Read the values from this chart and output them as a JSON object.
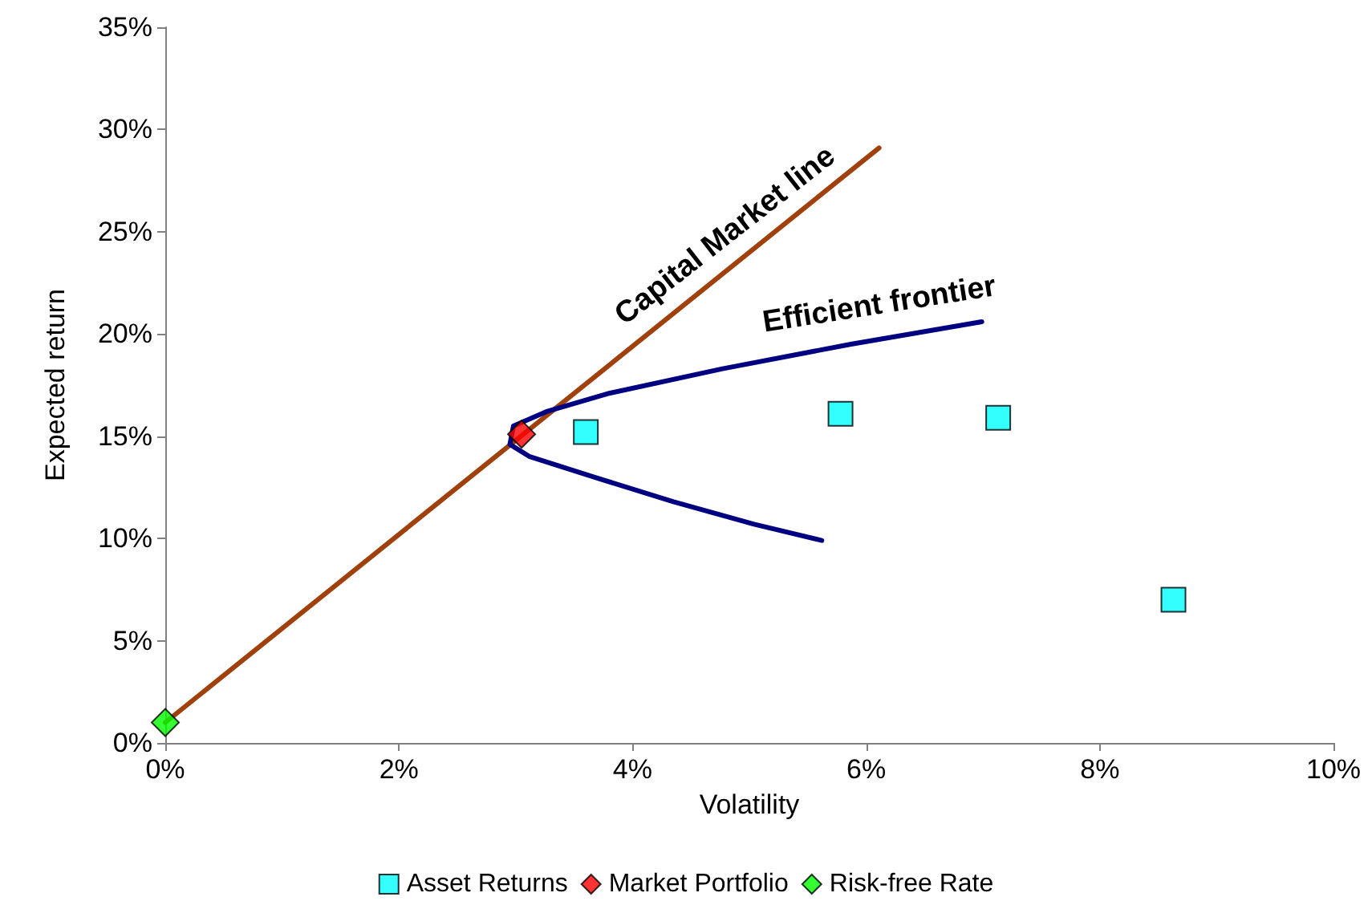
{
  "chart_data": {
    "type": "scatter",
    "xlabel": "Volatility",
    "ylabel": "Expected return",
    "xlim": [
      0,
      10
    ],
    "ylim": [
      0,
      35
    ],
    "xticks": [
      {
        "value": 0,
        "label": "0%"
      },
      {
        "value": 2,
        "label": "2%"
      },
      {
        "value": 4,
        "label": "4%"
      },
      {
        "value": 6,
        "label": "6%"
      },
      {
        "value": 8,
        "label": "8%"
      },
      {
        "value": 10,
        "label": "10%"
      }
    ],
    "yticks": [
      {
        "value": 0,
        "label": "0%"
      },
      {
        "value": 5,
        "label": "5%"
      },
      {
        "value": 10,
        "label": "10%"
      },
      {
        "value": 15,
        "label": "15%"
      },
      {
        "value": 20,
        "label": "20%"
      },
      {
        "value": 25,
        "label": "25%"
      },
      {
        "value": 30,
        "label": "30%"
      },
      {
        "value": 35,
        "label": "35%"
      }
    ],
    "grid": false,
    "legend": "bottom",
    "series": [
      {
        "type": "line",
        "color": "#a0410d",
        "marker": "none",
        "x": [
          0,
          6.11
        ],
        "values": [
          1.0,
          29.1
        ]
      },
      {
        "type": "line",
        "color": "#000080",
        "marker": "none",
        "x": [
          5.62,
          5.04,
          4.35,
          3.67,
          3.12,
          2.95,
          2.98,
          3.26,
          3.8,
          4.77,
          5.87,
          6.99
        ],
        "values": [
          9.9,
          10.7,
          11.8,
          13.0,
          14.0,
          14.6,
          15.5,
          16.2,
          17.1,
          18.3,
          19.5,
          20.6
        ]
      },
      {
        "name": "Asset Returns",
        "color": "#00ffff",
        "marker": "square",
        "x": [
          3.6,
          5.78,
          7.13,
          8.63
        ],
        "values": [
          15.2,
          16.1,
          15.9,
          7.0
        ]
      },
      {
        "name": "Market Portfolio",
        "color": "#ff0000",
        "marker": "diamond",
        "x": [
          3.05
        ],
        "values": [
          15.1
        ]
      },
      {
        "name": "Risk-free Rate",
        "color": "#00ff00",
        "marker": "diamond",
        "x": [
          0
        ],
        "values": [
          1.0
        ]
      }
    ],
    "annotations": [
      "Capital Market line",
      "Efficient frontier"
    ]
  }
}
